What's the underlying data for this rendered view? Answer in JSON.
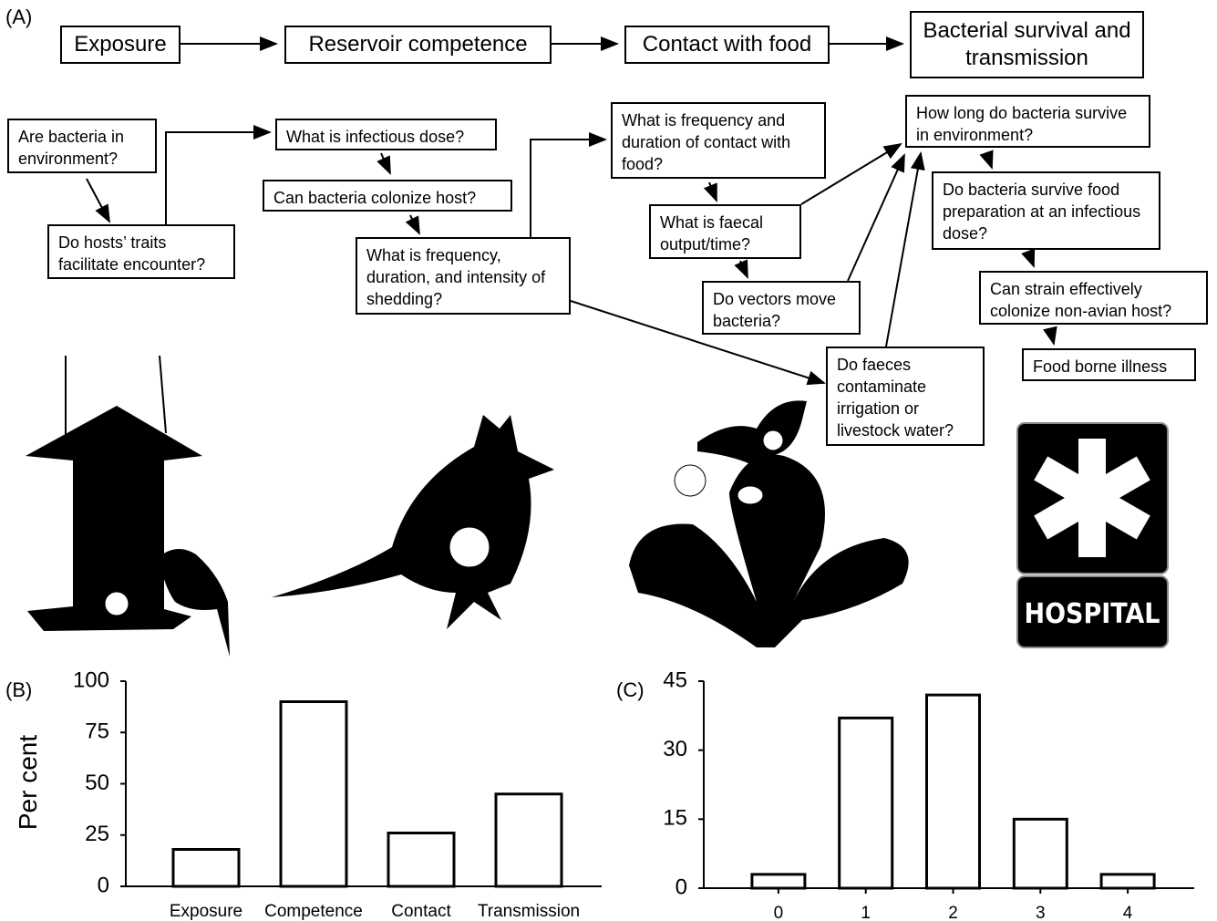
{
  "panel_a": {
    "label": "(A)",
    "stages": [
      "Exposure",
      "Reservoir competence",
      "Contact with food",
      "Bacterial survival and transmission"
    ],
    "questions": [
      "Are bacteria in environment?",
      "Do hosts’ traits facilitate encounter?",
      "What is infectious dose?",
      "Can bacteria colonize host?",
      "What is frequency, duration, and intensity of shedding?",
      "What is frequency and duration of contact with food?",
      "What is faecal output/time?",
      "Do vectors move bacteria?",
      "Do faeces contaminate irrigation or livestock water?",
      "How long do bacteria survive in environment?",
      "Do bacteria survive food preparation at an infectious dose?",
      "Can strain effectively colonize non-avian host?",
      "Food borne illness"
    ],
    "sign": "HOSPITAL"
  },
  "chart_data": [
    {
      "type": "bar",
      "panel_label": "(B)",
      "ylabel": "Per cent",
      "categories": [
        "Exposure",
        "Competence",
        "Contact",
        "Transmission"
      ],
      "values": [
        18,
        90,
        26,
        45
      ],
      "ylim": [
        0,
        100
      ],
      "yticks": [
        0,
        25,
        50,
        75,
        100
      ],
      "color": "#ffffff"
    },
    {
      "type": "bar",
      "panel_label": "(C)",
      "categories": [
        "0",
        "1",
        "2",
        "3",
        "4"
      ],
      "values": [
        3,
        37,
        42,
        15,
        3
      ],
      "ylim": [
        0,
        45
      ],
      "yticks": [
        0,
        15,
        30,
        45
      ],
      "color": "#ffffff"
    }
  ]
}
